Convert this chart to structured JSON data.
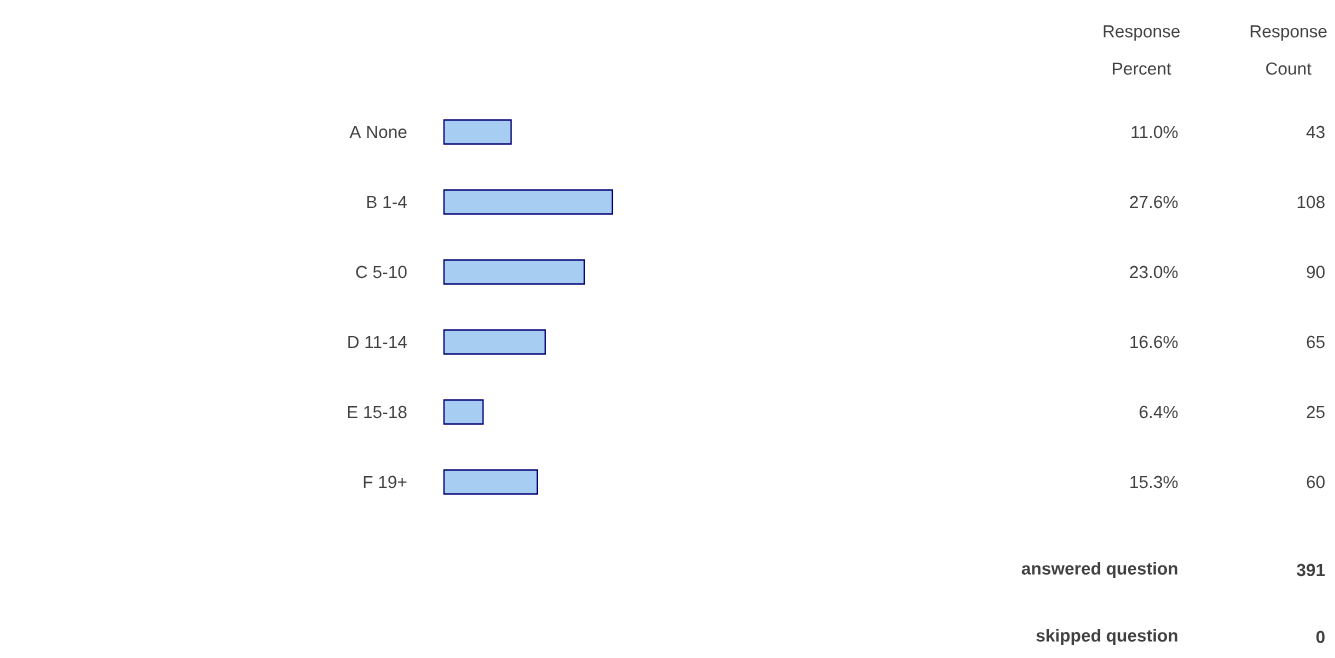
{
  "chart_data": {
    "type": "bar",
    "orientation": "horizontal",
    "categories": [
      "A None",
      "B 1-4",
      "C 5-10",
      "D 11-14",
      "E 15-18",
      "F 19+"
    ],
    "values": [
      11.0,
      27.6,
      23.0,
      16.6,
      6.4,
      15.3
    ],
    "value_labels": [
      "11.0%",
      "27.6%",
      "23.0%",
      "16.6%",
      "6.4%",
      "15.3%"
    ],
    "color": "#a8cdf3",
    "annotations": [
      "Response Percent",
      "Response Count",
      "43",
      "108",
      "90",
      "65",
      "25",
      "60",
      "answered question",
      "391",
      "skipped question",
      "0"
    ]
  }
}
